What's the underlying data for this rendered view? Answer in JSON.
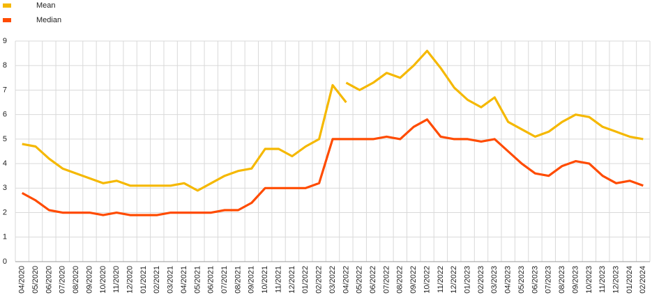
{
  "chart_data": {
    "type": "line",
    "categories": [
      "04/2020",
      "05/2020",
      "06/2020",
      "07/2020",
      "08/2020",
      "09/2020",
      "10/2020",
      "11/2020",
      "12/2020",
      "01/2021",
      "02/2021",
      "03/2021",
      "04/2021",
      "05/2021",
      "06/2021",
      "07/2021",
      "08/2021",
      "09/2021",
      "10/2021",
      "11/2021",
      "12/2021",
      "01/2022",
      "02/2022",
      "03/2022",
      "04/2022",
      "05/2022",
      "06/2022",
      "07/2022",
      "08/2022",
      "09/2022",
      "10/2022",
      "11/2022",
      "12/2022",
      "01/2023",
      "02/2023",
      "03/2023",
      "04/2023",
      "05/2023",
      "06/2023",
      "07/2023",
      "08/2023",
      "09/2023",
      "10/2023",
      "11/2023",
      "12/2023",
      "01/2024",
      "02/2024"
    ],
    "series": [
      {
        "name": "Mean",
        "color": "#f5b800",
        "values": [
          4.8,
          4.7,
          4.2,
          3.8,
          3.6,
          3.4,
          3.2,
          3.3,
          3.1,
          3.1,
          3.1,
          3.1,
          3.2,
          2.9,
          3.2,
          3.5,
          3.7,
          3.8,
          4.6,
          4.6,
          4.3,
          4.7,
          5.0,
          7.2,
          6.5,
          null,
          null,
          null,
          null,
          null,
          null,
          null,
          null,
          null,
          null,
          null,
          null,
          null,
          null,
          null,
          null,
          null,
          null,
          null,
          null,
          null,
          null
        ]
      },
      {
        "name": "Median",
        "color": "#ff4b00",
        "values": [
          2.8,
          2.5,
          2.1,
          2.0,
          2.0,
          2.0,
          1.9,
          2.0,
          1.9,
          1.9,
          1.9,
          2.0,
          2.0,
          2.0,
          2.0,
          2.1,
          2.1,
          2.4,
          3.0,
          3.0,
          3.0,
          3.0,
          3.2,
          5.0,
          5.0,
          5.0,
          5.0,
          5.1,
          5.0,
          5.5,
          5.8,
          5.1,
          5.0,
          5.0,
          4.9,
          5.0,
          4.5,
          4.0,
          3.6,
          3.5,
          3.9,
          4.1,
          4.0,
          3.5,
          3.2,
          3.3,
          3.1
        ]
      },
      {
        "color": "#f5b800",
        "values": [
          null,
          null,
          null,
          null,
          null,
          null,
          null,
          null,
          null,
          null,
          null,
          null,
          null,
          null,
          null,
          null,
          null,
          null,
          null,
          null,
          null,
          null,
          null,
          null,
          7.3,
          7.0,
          7.3,
          7.7,
          7.5,
          8.0,
          8.6,
          7.9,
          7.1,
          6.6,
          6.3,
          6.7,
          5.7,
          5.4,
          5.1,
          5.3,
          5.7,
          6.0,
          5.9,
          5.5,
          5.3,
          5.1,
          5.0
        ]
      }
    ],
    "ylim": [
      0,
      9
    ],
    "yticks": [
      0,
      1,
      2,
      3,
      4,
      5,
      6,
      7,
      8,
      9
    ],
    "grid": true,
    "legend": "top-left"
  }
}
